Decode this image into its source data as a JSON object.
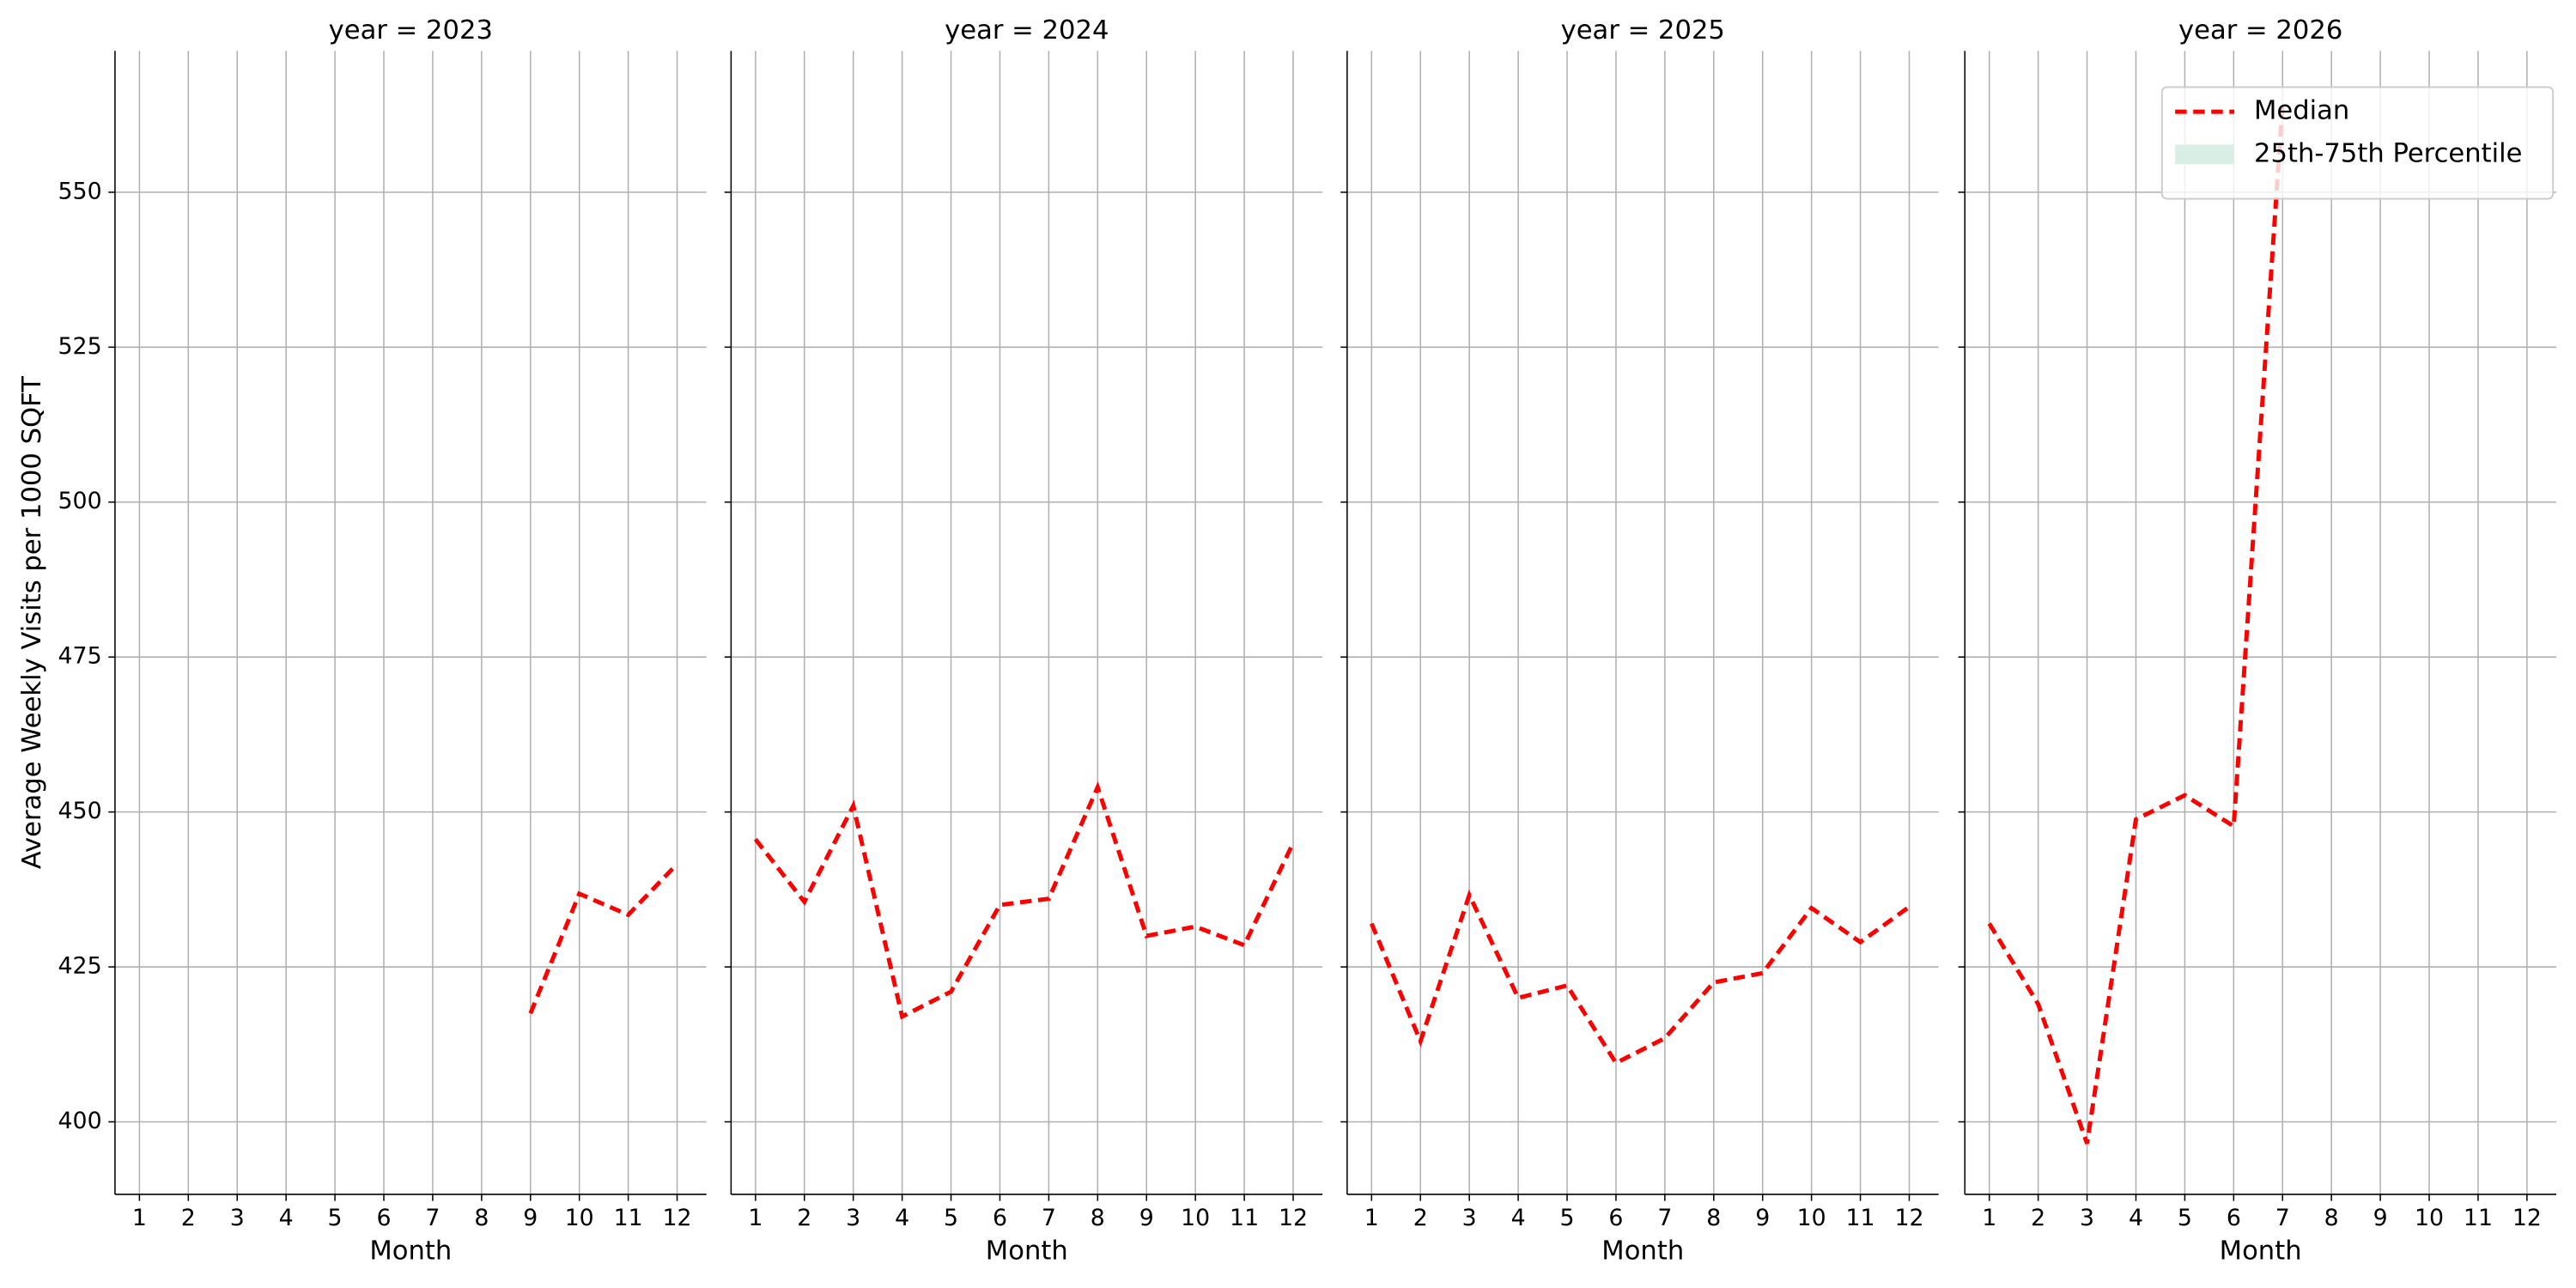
{
  "chart_data": [
    {
      "type": "line",
      "title": "year = 2023",
      "xlabel": "Month",
      "ylabel": "Average Weekly Visits per 1000 SQFT",
      "x": [
        1,
        2,
        3,
        4,
        5,
        6,
        7,
        8,
        9,
        10,
        11,
        12
      ],
      "series": [
        {
          "name": "Median",
          "color": "#ff0000",
          "values": [
            null,
            null,
            null,
            null,
            null,
            null,
            null,
            null,
            417.5,
            436.8,
            433.4,
            441.6
          ]
        }
      ],
      "xlim": [
        0.5,
        12.6
      ],
      "ylim": [
        388.3,
        572.8
      ],
      "xticks": [
        1,
        2,
        3,
        4,
        5,
        6,
        7,
        8,
        9,
        10,
        11,
        12
      ],
      "yticks": [
        400,
        425,
        450,
        475,
        500,
        525,
        550
      ],
      "grid": true,
      "ytick_labels": true
    },
    {
      "type": "line",
      "title": "year = 2024",
      "xlabel": "Month",
      "x": [
        1,
        2,
        3,
        4,
        5,
        6,
        7,
        8,
        9,
        10,
        11,
        12
      ],
      "series": [
        {
          "name": "Median",
          "color": "#ff0000",
          "values": [
            445.6,
            435.5,
            451,
            417,
            421,
            435,
            436,
            454,
            430,
            431.5,
            428.5,
            445
          ]
        }
      ],
      "xlim": [
        0.5,
        12.6
      ],
      "ylim": [
        388.3,
        572.8
      ],
      "xticks": [
        1,
        2,
        3,
        4,
        5,
        6,
        7,
        8,
        9,
        10,
        11,
        12
      ],
      "yticks": [
        400,
        425,
        450,
        475,
        500,
        525,
        550
      ],
      "grid": true,
      "ytick_labels": false
    },
    {
      "type": "line",
      "title": "year = 2025",
      "xlabel": "Month",
      "x": [
        1,
        2,
        3,
        4,
        5,
        6,
        7,
        8,
        9,
        10,
        11,
        12
      ],
      "series": [
        {
          "name": "Median",
          "color": "#ff0000",
          "values": [
            432,
            413,
            436.6,
            420,
            422,
            409.5,
            413.5,
            422.5,
            424,
            434.5,
            429,
            434.7
          ]
        }
      ],
      "xlim": [
        0.5,
        12.6
      ],
      "ylim": [
        388.3,
        572.8
      ],
      "xticks": [
        1,
        2,
        3,
        4,
        5,
        6,
        7,
        8,
        9,
        10,
        11,
        12
      ],
      "yticks": [
        400,
        425,
        450,
        475,
        500,
        525,
        550
      ],
      "grid": true,
      "ytick_labels": false
    },
    {
      "type": "line",
      "title": "year = 2026",
      "xlabel": "Month",
      "x": [
        1,
        2,
        3,
        4,
        5,
        6,
        7,
        8,
        9,
        10,
        11,
        12
      ],
      "series": [
        {
          "name": "Median",
          "color": "#ff0000",
          "values": [
            432,
            419,
            396.5,
            448.8,
            452.7,
            447.7,
            564.3,
            null,
            null,
            null,
            null,
            null
          ]
        }
      ],
      "xlim": [
        0.5,
        12.6
      ],
      "ylim": [
        388.3,
        572.8
      ],
      "xticks": [
        1,
        2,
        3,
        4,
        5,
        6,
        7,
        8,
        9,
        10,
        11,
        12
      ],
      "yticks": [
        400,
        425,
        450,
        475,
        500,
        525,
        550
      ],
      "grid": true,
      "ytick_labels": false,
      "legend": {
        "loc": "upper right",
        "entries": [
          {
            "label": "Median",
            "color": "#ff0000",
            "style": "dashed"
          },
          {
            "label": "25th-75th Percentile",
            "color": "#d9efe6",
            "style": "patch"
          }
        ]
      }
    }
  ]
}
